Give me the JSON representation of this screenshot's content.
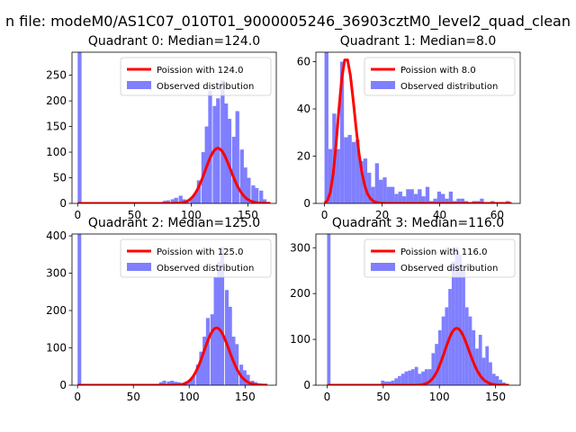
{
  "figure": {
    "suptitle": "n file: modeM0/AS1C07_010T01_9000005246_36903cztM0_level2_quad_clean",
    "colors": {
      "hist": "#7f7fff",
      "poisson": "#ff0000"
    }
  },
  "chart_data": [
    {
      "type": "bar",
      "title": "Quadrant 0: Median=124.0",
      "median": 124.0,
      "xlim": [
        -5,
        175
      ],
      "ylim": [
        0,
        295
      ],
      "xticks": [
        0,
        50,
        100,
        150
      ],
      "yticks": [
        0,
        50,
        100,
        150,
        200,
        250
      ],
      "xlabel": "",
      "ylabel": "",
      "legend": {
        "position": "upper-right",
        "entries": [
          "Poission with 124.0",
          "Observed distribution"
        ]
      },
      "series": [
        {
          "name": "Observed distribution",
          "kind": "histogram",
          "bin_width": 3.4,
          "bins": [
            [
              0,
              300
            ],
            [
              71,
              2
            ],
            [
              75,
              5
            ],
            [
              78,
              6
            ],
            [
              82,
              8
            ],
            [
              85,
              11
            ],
            [
              89,
              15
            ],
            [
              92,
              8
            ],
            [
              95,
              5
            ],
            [
              99,
              10
            ],
            [
              102,
              20
            ],
            [
              105,
              45
            ],
            [
              109,
              100
            ],
            [
              112,
              150
            ],
            [
              115,
              220
            ],
            [
              119,
              190
            ],
            [
              122,
              205
            ],
            [
              126,
              240
            ],
            [
              129,
              195
            ],
            [
              132,
              165
            ],
            [
              136,
              130
            ],
            [
              139,
              180
            ],
            [
              143,
              105
            ],
            [
              146,
              70
            ],
            [
              149,
              50
            ],
            [
              153,
              35
            ],
            [
              156,
              30
            ],
            [
              160,
              25
            ],
            [
              163,
              8
            ],
            [
              166,
              3
            ]
          ]
        },
        {
          "name": "Poission with 124.0",
          "kind": "poisson",
          "lambda": 124.0,
          "scale": 3000,
          "x_range": [
            0,
            170
          ]
        }
      ]
    },
    {
      "type": "bar",
      "title": "Quadrant 1: Median=8.0",
      "median": 8.0,
      "xlim": [
        -3,
        68
      ],
      "ylim": [
        0,
        64
      ],
      "xticks": [
        0,
        20,
        40,
        60
      ],
      "yticks": [
        0,
        20,
        40,
        60
      ],
      "xlabel": "",
      "ylabel": "",
      "legend": {
        "position": "upper-right",
        "entries": [
          "Poission with 8.0",
          "Observed distribution"
        ]
      },
      "series": [
        {
          "name": "Observed distribution",
          "kind": "histogram",
          "bin_width": 1.35,
          "bins": [
            [
              0,
              64
            ],
            [
              1.35,
              23
            ],
            [
              2.7,
              38
            ],
            [
              4.05,
              23
            ],
            [
              5.4,
              60
            ],
            [
              6.75,
              28
            ],
            [
              8.1,
              29
            ],
            [
              9.45,
              26
            ],
            [
              10.8,
              27
            ],
            [
              12.15,
              18
            ],
            [
              13.5,
              19
            ],
            [
              14.85,
              13
            ],
            [
              16.2,
              7
            ],
            [
              17.55,
              17
            ],
            [
              18.9,
              10
            ],
            [
              20.25,
              11
            ],
            [
              21.6,
              7
            ],
            [
              22.95,
              7
            ],
            [
              24.3,
              4
            ],
            [
              25.65,
              5
            ],
            [
              27,
              3
            ],
            [
              28.35,
              6
            ],
            [
              29.7,
              6
            ],
            [
              31.05,
              4
            ],
            [
              32.4,
              6
            ],
            [
              33.75,
              3
            ],
            [
              35.1,
              7
            ],
            [
              36.45,
              1
            ],
            [
              37.8,
              2
            ],
            [
              39.15,
              5
            ],
            [
              40.5,
              4
            ],
            [
              41.85,
              2
            ],
            [
              43.2,
              5
            ],
            [
              44.55,
              1
            ],
            [
              45.9,
              2
            ],
            [
              47.25,
              2
            ],
            [
              48.6,
              1
            ],
            [
              51.3,
              1
            ],
            [
              52.65,
              1
            ],
            [
              54,
              2
            ],
            [
              57.7,
              1
            ],
            [
              63,
              1
            ]
          ]
        },
        {
          "name": "Poission with 8.0",
          "kind": "poisson",
          "lambda": 8.0,
          "scale": 435,
          "x_range": [
            0,
            65
          ]
        }
      ]
    },
    {
      "type": "bar",
      "title": "Quadrant 2: Median=125.0",
      "median": 125.0,
      "xlim": [
        -5,
        178
      ],
      "ylim": [
        0,
        405
      ],
      "xticks": [
        0,
        50,
        100,
        150
      ],
      "yticks": [
        0,
        100,
        200,
        300,
        400
      ],
      "xlabel": "",
      "ylabel": "",
      "legend": {
        "position": "upper-right",
        "entries": [
          "Poission with 125.0",
          "Observed distribution"
        ]
      },
      "series": [
        {
          "name": "Observed distribution",
          "kind": "histogram",
          "bin_width": 3.3,
          "bins": [
            [
              0,
              410
            ],
            [
              73,
              8
            ],
            [
              76,
              12
            ],
            [
              80,
              10
            ],
            [
              83,
              12
            ],
            [
              86,
              9
            ],
            [
              89,
              8
            ],
            [
              93,
              6
            ],
            [
              96,
              10
            ],
            [
              99,
              14
            ],
            [
              102,
              25
            ],
            [
              106,
              55
            ],
            [
              109,
              90
            ],
            [
              112,
              130
            ],
            [
              115,
              180
            ],
            [
              119,
              190
            ],
            [
              122,
              290
            ],
            [
              125,
              330
            ],
            [
              128,
              370
            ],
            [
              132,
              255
            ],
            [
              135,
              210
            ],
            [
              138,
              130
            ],
            [
              141,
              110
            ],
            [
              145,
              55
            ],
            [
              148,
              40
            ],
            [
              151,
              28
            ],
            [
              155,
              12
            ],
            [
              158,
              8
            ],
            [
              161,
              5
            ]
          ]
        },
        {
          "name": "Poission with 125.0",
          "kind": "poisson",
          "lambda": 125.0,
          "scale": 4300,
          "x_range": [
            0,
            170
          ]
        }
      ]
    },
    {
      "type": "bar",
      "title": "Quadrant 3: Median=116.0",
      "median": 116.0,
      "xlim": [
        -10,
        172
      ],
      "ylim": [
        0,
        330
      ],
      "xticks": [
        0,
        50,
        100,
        150
      ],
      "yticks": [
        0,
        100,
        200,
        300
      ],
      "xlabel": "",
      "ylabel": "",
      "legend": {
        "position": "upper-right",
        "entries": [
          "Poission with 116.0",
          "Observed distribution"
        ]
      },
      "series": [
        {
          "name": "Observed distribution",
          "kind": "histogram",
          "bin_width": 3.0,
          "bins": [
            [
              0,
              335
            ],
            [
              48,
              10
            ],
            [
              51,
              8
            ],
            [
              54,
              8
            ],
            [
              57,
              10
            ],
            [
              60,
              15
            ],
            [
              63,
              20
            ],
            [
              66,
              25
            ],
            [
              69,
              30
            ],
            [
              72,
              32
            ],
            [
              75,
              35
            ],
            [
              78,
              40
            ],
            [
              81,
              25
            ],
            [
              84,
              30
            ],
            [
              87,
              35
            ],
            [
              90,
              35
            ],
            [
              93,
              70
            ],
            [
              96,
              90
            ],
            [
              99,
              120
            ],
            [
              102,
              150
            ],
            [
              105,
              170
            ],
            [
              108,
              210
            ],
            [
              111,
              270
            ],
            [
              114,
              300
            ],
            [
              117,
              285
            ],
            [
              120,
              250
            ],
            [
              123,
              170
            ],
            [
              126,
              150
            ],
            [
              129,
              120
            ],
            [
              132,
              80
            ],
            [
              135,
              110
            ],
            [
              138,
              60
            ],
            [
              141,
              85
            ],
            [
              144,
              50
            ],
            [
              147,
              25
            ],
            [
              150,
              20
            ],
            [
              153,
              12
            ],
            [
              156,
              6
            ],
            [
              159,
              3
            ]
          ]
        },
        {
          "name": "Poission with 116.0",
          "kind": "poisson",
          "lambda": 116.0,
          "scale": 3350,
          "x_range": [
            0,
            162
          ]
        }
      ]
    }
  ]
}
